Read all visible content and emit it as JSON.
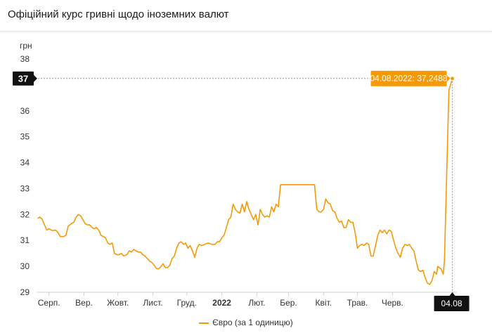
{
  "header": {
    "title": "Офіційний курс гривні щодо іноземних валют"
  },
  "chart_data": {
    "type": "line",
    "title": "Офіційний курс гривні щодо іноземних валют",
    "ylabel": "грн",
    "xlabel": "",
    "ylim": [
      29,
      38
    ],
    "yticks": [
      29,
      30,
      31,
      32,
      33,
      34,
      35,
      36,
      37,
      38
    ],
    "xlim": [
      "2021-08-01",
      "2022-08-08"
    ],
    "xticks": [
      {
        "date": "2021-08-12",
        "label": "Серп."
      },
      {
        "date": "2021-09-12",
        "label": "Вер."
      },
      {
        "date": "2021-10-12",
        "label": "Жовт."
      },
      {
        "date": "2021-11-12",
        "label": "Лист."
      },
      {
        "date": "2021-12-12",
        "label": "Груд."
      },
      {
        "date": "2022-01-12",
        "label": "2022",
        "bold": true
      },
      {
        "date": "2022-02-12",
        "label": "Лют."
      },
      {
        "date": "2022-03-12",
        "label": "Бер."
      },
      {
        "date": "2022-04-12",
        "label": "Квіт."
      },
      {
        "date": "2022-05-12",
        "label": "Трав."
      },
      {
        "date": "2022-06-12",
        "label": "Черв."
      }
    ],
    "highlight": {
      "date": "2022-08-04",
      "x_label": "04.08",
      "y_label": "37",
      "value": 37.2488,
      "tooltip": "04.08.2022: 37,2488"
    },
    "grid": false,
    "legend_position": "bottom-center",
    "series": [
      {
        "name": "Євро (за 1 одиницю)",
        "color": "#f59a06",
        "points": [
          [
            "2021-08-02",
            31.85
          ],
          [
            "2021-08-04",
            31.9
          ],
          [
            "2021-08-06",
            31.82
          ],
          [
            "2021-08-08",
            31.6
          ],
          [
            "2021-08-10",
            31.4
          ],
          [
            "2021-08-12",
            31.45
          ],
          [
            "2021-08-15",
            31.38
          ],
          [
            "2021-08-18",
            31.4
          ],
          [
            "2021-08-20",
            31.3
          ],
          [
            "2021-08-22",
            31.15
          ],
          [
            "2021-08-25",
            31.15
          ],
          [
            "2021-08-27",
            31.2
          ],
          [
            "2021-08-29",
            31.55
          ],
          [
            "2021-09-01",
            31.65
          ],
          [
            "2021-09-03",
            31.7
          ],
          [
            "2021-09-05",
            31.9
          ],
          [
            "2021-09-07",
            32.0
          ],
          [
            "2021-09-09",
            31.95
          ],
          [
            "2021-09-11",
            31.8
          ],
          [
            "2021-09-13",
            31.65
          ],
          [
            "2021-09-15",
            31.6
          ],
          [
            "2021-09-17",
            31.6
          ],
          [
            "2021-09-19",
            31.5
          ],
          [
            "2021-09-21",
            31.45
          ],
          [
            "2021-09-23",
            31.5
          ],
          [
            "2021-09-25",
            31.4
          ],
          [
            "2021-09-27",
            31.2
          ],
          [
            "2021-09-29",
            31.15
          ],
          [
            "2021-10-01",
            31.1
          ],
          [
            "2021-10-03",
            30.9
          ],
          [
            "2021-10-05",
            30.85
          ],
          [
            "2021-10-07",
            30.9
          ],
          [
            "2021-10-09",
            30.5
          ],
          [
            "2021-10-11",
            30.45
          ],
          [
            "2021-10-13",
            30.45
          ],
          [
            "2021-10-15",
            30.5
          ],
          [
            "2021-10-17",
            30.4
          ],
          [
            "2021-10-20",
            30.45
          ],
          [
            "2021-10-22",
            30.6
          ],
          [
            "2021-10-24",
            30.55
          ],
          [
            "2021-10-26",
            30.65
          ],
          [
            "2021-10-28",
            30.6
          ],
          [
            "2021-10-30",
            30.55
          ],
          [
            "2021-11-01",
            30.55
          ],
          [
            "2021-11-03",
            30.45
          ],
          [
            "2021-11-05",
            30.4
          ],
          [
            "2021-11-07",
            30.3
          ],
          [
            "2021-11-09",
            30.2
          ],
          [
            "2021-11-11",
            30.15
          ],
          [
            "2021-11-13",
            30.05
          ],
          [
            "2021-11-15",
            29.92
          ],
          [
            "2021-11-17",
            29.9
          ],
          [
            "2021-11-19",
            29.98
          ],
          [
            "2021-11-21",
            30.1
          ],
          [
            "2021-11-23",
            29.95
          ],
          [
            "2021-11-25",
            29.95
          ],
          [
            "2021-11-27",
            30.05
          ],
          [
            "2021-11-29",
            30.3
          ],
          [
            "2021-12-01",
            30.4
          ],
          [
            "2021-12-03",
            30.7
          ],
          [
            "2021-12-05",
            30.9
          ],
          [
            "2021-12-07",
            30.95
          ],
          [
            "2021-12-09",
            30.85
          ],
          [
            "2021-12-11",
            30.9
          ],
          [
            "2021-12-13",
            30.7
          ],
          [
            "2021-12-15",
            30.8
          ],
          [
            "2021-12-17",
            30.6
          ],
          [
            "2021-12-19",
            30.35
          ],
          [
            "2021-12-21",
            30.7
          ],
          [
            "2021-12-23",
            30.85
          ],
          [
            "2021-12-25",
            30.8
          ],
          [
            "2021-12-28",
            30.85
          ],
          [
            "2021-12-31",
            30.9
          ],
          [
            "2022-01-03",
            30.85
          ],
          [
            "2022-01-06",
            30.85
          ],
          [
            "2022-01-08",
            30.95
          ],
          [
            "2022-01-10",
            30.95
          ],
          [
            "2022-01-12",
            31.1
          ],
          [
            "2022-01-14",
            31.2
          ],
          [
            "2022-01-16",
            31.5
          ],
          [
            "2022-01-18",
            31.8
          ],
          [
            "2022-01-20",
            31.9
          ],
          [
            "2022-01-22",
            32.4
          ],
          [
            "2022-01-24",
            32.2
          ],
          [
            "2022-01-26",
            32.1
          ],
          [
            "2022-01-28",
            32.05
          ],
          [
            "2022-01-30",
            32.4
          ],
          [
            "2022-02-01",
            32.1
          ],
          [
            "2022-02-03",
            32.5
          ],
          [
            "2022-02-05",
            32.2
          ],
          [
            "2022-02-07",
            32.0
          ],
          [
            "2022-02-09",
            31.8
          ],
          [
            "2022-02-11",
            32.0
          ],
          [
            "2022-02-13",
            31.6
          ],
          [
            "2022-02-15",
            32.2
          ],
          [
            "2022-02-17",
            32.0
          ],
          [
            "2022-02-19",
            31.9
          ],
          [
            "2022-02-21",
            31.95
          ],
          [
            "2022-02-23",
            31.9
          ],
          [
            "2022-02-25",
            32.3
          ],
          [
            "2022-02-27",
            32.1
          ],
          [
            "2022-03-01",
            32.4
          ],
          [
            "2022-03-03",
            32.3
          ],
          [
            "2022-03-05",
            33.15
          ],
          [
            "2022-03-09",
            33.15
          ],
          [
            "2022-03-15",
            33.15
          ],
          [
            "2022-03-20",
            33.15
          ],
          [
            "2022-03-25",
            33.15
          ],
          [
            "2022-03-31",
            33.15
          ],
          [
            "2022-04-04",
            33.15
          ],
          [
            "2022-04-06",
            32.2
          ],
          [
            "2022-04-08",
            32.1
          ],
          [
            "2022-04-10",
            32.1
          ],
          [
            "2022-04-12",
            32.2
          ],
          [
            "2022-04-14",
            32.6
          ],
          [
            "2022-04-16",
            32.45
          ],
          [
            "2022-04-18",
            32.4
          ],
          [
            "2022-04-20",
            32.15
          ],
          [
            "2022-04-22",
            32.1
          ],
          [
            "2022-04-24",
            31.85
          ],
          [
            "2022-04-26",
            31.7
          ],
          [
            "2022-04-28",
            31.75
          ],
          [
            "2022-04-30",
            31.5
          ],
          [
            "2022-05-02",
            31.5
          ],
          [
            "2022-05-04",
            31.8
          ],
          [
            "2022-05-06",
            31.7
          ],
          [
            "2022-05-08",
            31.7
          ],
          [
            "2022-05-10",
            31.3
          ],
          [
            "2022-05-12",
            30.7
          ],
          [
            "2022-05-14",
            30.8
          ],
          [
            "2022-05-16",
            30.85
          ],
          [
            "2022-05-18",
            30.8
          ],
          [
            "2022-05-20",
            30.9
          ],
          [
            "2022-05-22",
            30.85
          ],
          [
            "2022-05-24",
            30.4
          ],
          [
            "2022-05-26",
            30.4
          ],
          [
            "2022-05-28",
            30.8
          ],
          [
            "2022-05-30",
            31.2
          ],
          [
            "2022-06-01",
            31.4
          ],
          [
            "2022-06-03",
            31.3
          ],
          [
            "2022-06-05",
            31.4
          ],
          [
            "2022-06-07",
            31.25
          ],
          [
            "2022-06-09",
            31.4
          ],
          [
            "2022-06-11",
            31.35
          ],
          [
            "2022-06-13",
            31.0
          ],
          [
            "2022-06-15",
            30.7
          ],
          [
            "2022-06-17",
            30.5
          ],
          [
            "2022-06-19",
            30.35
          ],
          [
            "2022-06-21",
            30.7
          ],
          [
            "2022-06-23",
            30.85
          ],
          [
            "2022-06-25",
            30.8
          ],
          [
            "2022-06-27",
            30.85
          ],
          [
            "2022-06-29",
            30.7
          ],
          [
            "2022-07-01",
            30.6
          ],
          [
            "2022-07-03",
            30.2
          ],
          [
            "2022-07-05",
            29.85
          ],
          [
            "2022-07-07",
            29.8
          ],
          [
            "2022-07-09",
            29.85
          ],
          [
            "2022-07-11",
            29.55
          ],
          [
            "2022-07-13",
            29.35
          ],
          [
            "2022-07-15",
            29.3
          ],
          [
            "2022-07-17",
            29.45
          ],
          [
            "2022-07-19",
            29.8
          ],
          [
            "2022-07-21",
            29.7
          ],
          [
            "2022-07-22",
            30.0
          ],
          [
            "2022-07-25",
            29.9
          ],
          [
            "2022-07-27",
            29.7
          ],
          [
            "2022-07-28",
            30.2
          ],
          [
            "2022-07-30",
            33.5
          ],
          [
            "2022-08-01",
            36.8
          ],
          [
            "2022-08-03",
            37.1
          ],
          [
            "2022-08-04",
            37.2488
          ]
        ]
      }
    ]
  }
}
